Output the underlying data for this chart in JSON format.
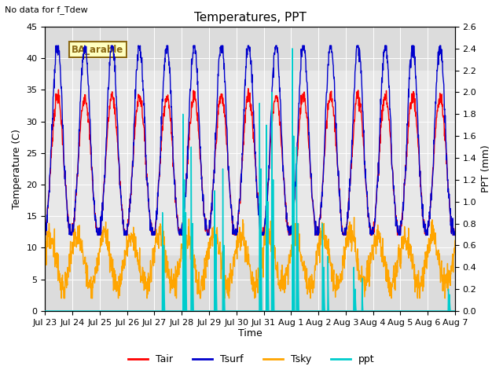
{
  "title": "Temperatures, PPT",
  "subtitle": "No data for f_Tdew",
  "annotation": "BA_arable",
  "xlabel": "Time",
  "ylabel_left": "Temperature (C)",
  "ylabel_right": "PPT (mm)",
  "ylim_left": [
    0,
    45
  ],
  "ylim_right": [
    0.0,
    2.6
  ],
  "yticks_left": [
    0,
    5,
    10,
    15,
    20,
    25,
    30,
    35,
    40,
    45
  ],
  "yticks_right": [
    0.0,
    0.2,
    0.4,
    0.6,
    0.8,
    1.0,
    1.2,
    1.4,
    1.6,
    1.8,
    2.0,
    2.2,
    2.4,
    2.6
  ],
  "xticklabels": [
    "Jul 23",
    "Jul 24",
    "Jul 25",
    "Jul 26",
    "Jul 27",
    "Jul 28",
    "Jul 29",
    "Jul 30",
    "Jul 31",
    "Aug 1",
    "Aug 2",
    "Aug 3",
    "Aug 4",
    "Aug 5",
    "Aug 6",
    "Aug 7"
  ],
  "colors": {
    "Tair": "#ff0000",
    "Tsurf": "#0000cc",
    "Tsky": "#ffa500",
    "ppt": "#00cccc",
    "bg_outer": "#dcdcdc",
    "bg_inner": "#e8e8e8"
  },
  "legend_labels": [
    "Tair",
    "Tsurf",
    "Tsky",
    "ppt"
  ],
  "shaded_band": [
    9,
    38
  ],
  "n_days": 15,
  "pts_per_day": 96
}
